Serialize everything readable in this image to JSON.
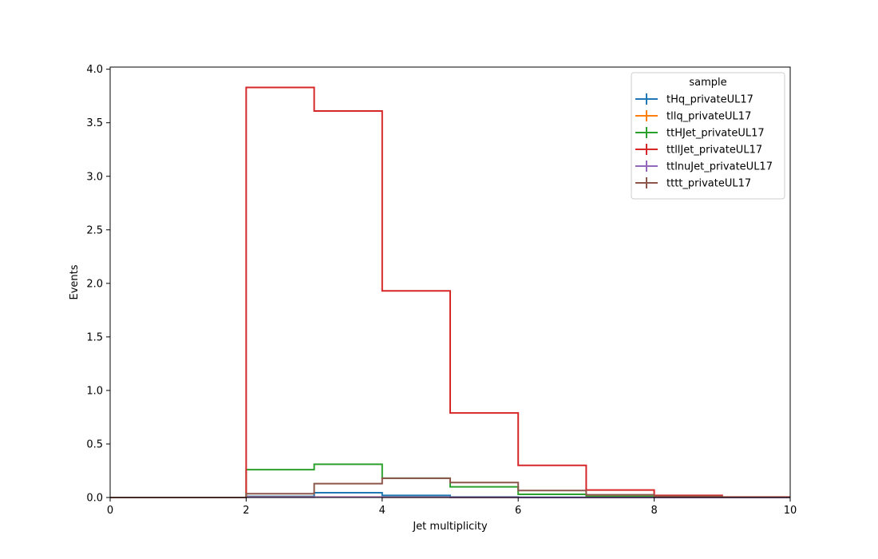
{
  "chart_data": {
    "type": "histogram-step",
    "title": "",
    "xlabel": "Jet multiplicity",
    "ylabel": "Events",
    "xlim": [
      0,
      10
    ],
    "ylim": [
      0,
      4.02
    ],
    "xticks": [
      0,
      2,
      4,
      6,
      8,
      10
    ],
    "yticks": [
      0.0,
      0.5,
      1.0,
      1.5,
      2.0,
      2.5,
      3.0,
      3.5,
      4.0
    ],
    "bin_edges": [
      0,
      1,
      2,
      3,
      4,
      5,
      6,
      7,
      8,
      9,
      10
    ],
    "legend": {
      "title": "sample",
      "placement": "top-right"
    },
    "grid": false,
    "series": [
      {
        "name": "tHq_privateUL17",
        "color": "#1f77b4",
        "values": [
          0,
          0,
          0.01,
          0.045,
          0.02,
          0.005,
          0.002,
          0.001,
          0,
          0
        ]
      },
      {
        "name": "tllq_privateUL17",
        "color": "#ff7f0e",
        "values": [
          0,
          0,
          0.005,
          0.005,
          0.003,
          0.001,
          0,
          0,
          0,
          0
        ]
      },
      {
        "name": "ttHJet_privateUL17",
        "color": "#2ca02c",
        "values": [
          0,
          0,
          0.26,
          0.31,
          0.18,
          0.1,
          0.03,
          0.01,
          0.005,
          0
        ]
      },
      {
        "name": "ttllJet_privateUL17",
        "color": "#d62728",
        "values": [
          0,
          0,
          3.83,
          3.61,
          1.93,
          0.79,
          0.3,
          0.07,
          0.02,
          0.005
        ]
      },
      {
        "name": "ttlnuJet_privateUL17",
        "color": "#9467bd",
        "values": [
          0,
          0,
          0.003,
          0.004,
          0.003,
          0.001,
          0,
          0,
          0,
          0
        ]
      },
      {
        "name": "tttt_privateUL17",
        "color": "#8c564b",
        "values": [
          0,
          0,
          0.035,
          0.13,
          0.18,
          0.14,
          0.065,
          0.025,
          0.01,
          0.003
        ]
      }
    ]
  }
}
